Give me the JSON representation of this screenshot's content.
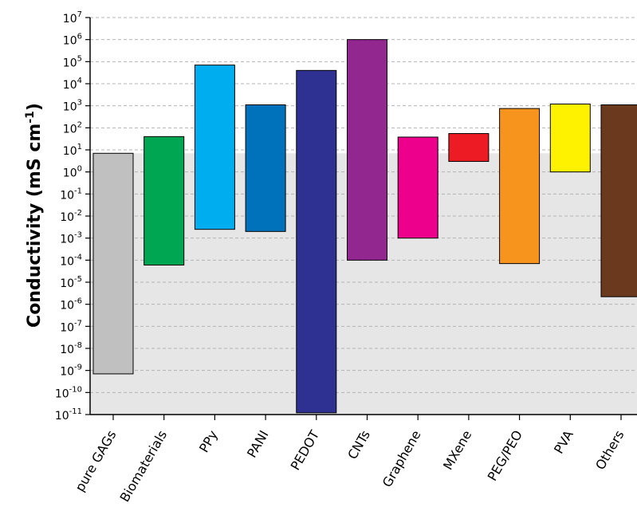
{
  "chart_data": {
    "type": "bar",
    "subtype": "floating-range",
    "title": "",
    "xlabel": "",
    "ylabel": {
      "text": "Conductivity (mS cm",
      "sup": "-1",
      "close": ")"
    },
    "yscale": "log",
    "ylim": [
      1e-11,
      10000000.0
    ],
    "ytick_exponents": [
      -11,
      -10,
      -9,
      -8,
      -7,
      -6,
      -5,
      -4,
      -3,
      -2,
      -1,
      0,
      1,
      2,
      3,
      4,
      5,
      6,
      7
    ],
    "ytick_base": "10",
    "grid": "horizontal dashed",
    "shaded_region": {
      "from": 1e-11,
      "to": 7
    },
    "categories": [
      "pure GAGs",
      "Biomaterials",
      "PPy",
      "PANI",
      "PEDOT",
      "CNTs",
      "Graphene",
      "MXene",
      "PEG/PEO",
      "PVA",
      "Others"
    ],
    "ranges": [
      [
        7e-10,
        7
      ],
      [
        6e-05,
        40
      ],
      [
        0.0025,
        70000.0
      ],
      [
        0.002,
        1100
      ],
      [
        1.2e-11,
        40000.0
      ],
      [
        0.0001,
        1000000.0
      ],
      [
        0.001,
        38
      ],
      [
        3,
        55
      ],
      [
        7e-05,
        750
      ],
      [
        1,
        1200
      ],
      [
        2.2e-06,
        1100
      ]
    ],
    "colors": [
      "#c0c0c0",
      "#00a651",
      "#00aeef",
      "#0072bc",
      "#2e3192",
      "#92278f",
      "#ec008c",
      "#ed1c24",
      "#f7941d",
      "#fff200",
      "#6b3a1e"
    ]
  }
}
